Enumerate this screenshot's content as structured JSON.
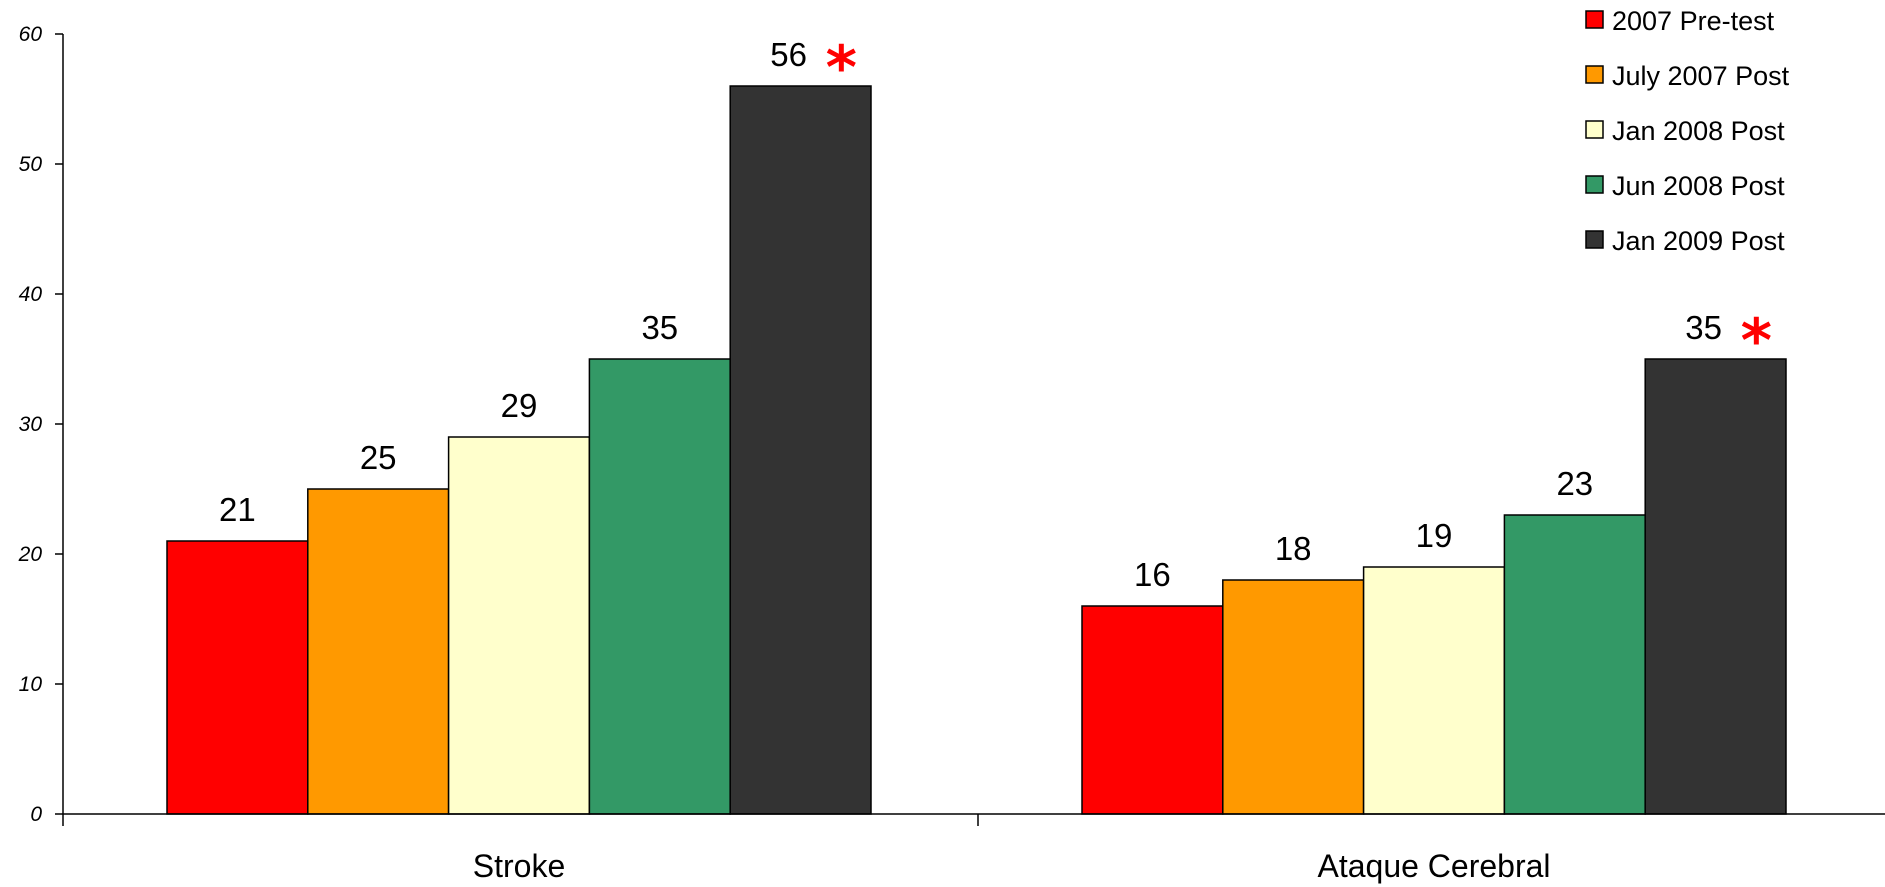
{
  "chart_data": {
    "type": "bar",
    "categories": [
      "Stroke",
      "Ataque Cerebral"
    ],
    "series": [
      {
        "name": "2007 Pre-test",
        "color": "#ff0000",
        "values": [
          21,
          16
        ]
      },
      {
        "name": "July 2007 Post",
        "color": "#ff9900",
        "values": [
          25,
          18
        ]
      },
      {
        "name": "Jan 2008 Post",
        "color": "#ffffcc",
        "values": [
          29,
          19
        ]
      },
      {
        "name": "Jun 2008 Post",
        "color": "#339966",
        "values": [
          35,
          23
        ]
      },
      {
        "name": "Jan 2009 Post",
        "color": "#333333",
        "values": [
          56,
          35
        ]
      }
    ],
    "annotations": [
      {
        "series": "Jan 2009 Post",
        "category": "Stroke",
        "text": "*",
        "color": "#ff0000"
      },
      {
        "series": "Jan 2009 Post",
        "category": "Ataque Cerebral",
        "text": "*",
        "color": "#ff0000"
      }
    ],
    "ylim": [
      0,
      60
    ],
    "yticks": [
      0,
      10,
      20,
      30,
      40,
      50,
      60
    ],
    "grid": false,
    "legend": "top-right",
    "data_labels": true
  }
}
